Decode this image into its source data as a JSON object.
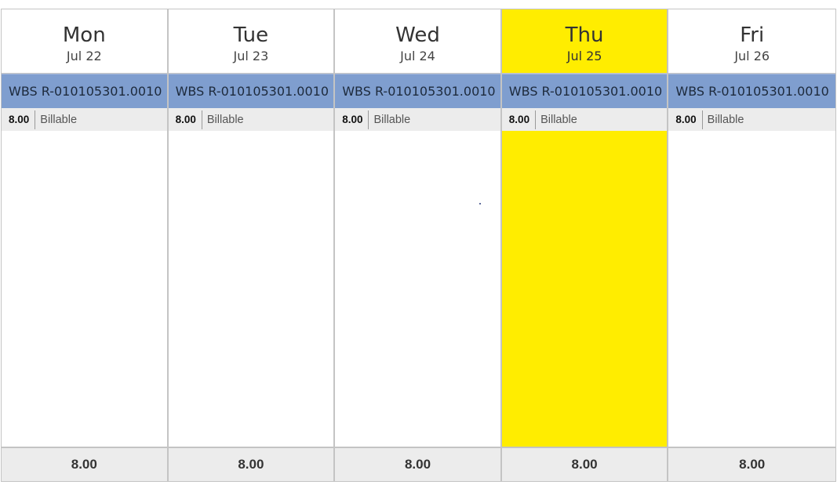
{
  "days": [
    {
      "name": "Mon",
      "date": "Jul 22",
      "entry": {
        "title": "WBS R-010105301.0010",
        "hours": "8.00",
        "type": "Billable"
      },
      "total": "8.00"
    },
    {
      "name": "Tue",
      "date": "Jul 23",
      "entry": {
        "title": "WBS R-010105301.0010",
        "hours": "8.00",
        "type": "Billable"
      },
      "total": "8.00"
    },
    {
      "name": "Wed",
      "date": "Jul 24",
      "entry": {
        "title": "WBS R-010105301.0010",
        "hours": "8.00",
        "type": "Billable"
      },
      "total": "8.00"
    },
    {
      "name": "Thu",
      "date": "Jul 25",
      "entry": {
        "title": "WBS R-010105301.0010",
        "hours": "8.00",
        "type": "Billable"
      },
      "total": "8.00",
      "is_today": true
    },
    {
      "name": "Fri",
      "date": "Jul 26",
      "entry": {
        "title": "WBS R-010105301.0010",
        "hours": "8.00",
        "type": "Billable"
      },
      "total": "8.00"
    }
  ],
  "colors": {
    "today_highlight": "#ffed00",
    "entry_bar": "#7f9ecf",
    "meta_background": "#ececec",
    "border": "#c4c4c4"
  }
}
